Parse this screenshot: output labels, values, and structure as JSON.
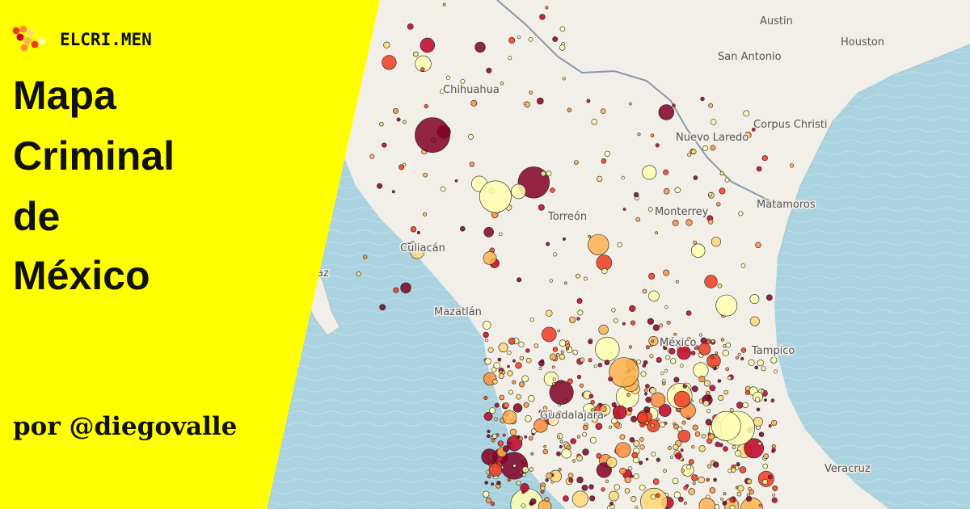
{
  "logo": {
    "text": "ELCRI.MEN"
  },
  "title": {
    "lines": [
      "Mapa",
      "Criminal",
      "de",
      "México"
    ]
  },
  "byline": "por @diegovalle",
  "map": {
    "labels": [
      "Austin",
      "Houston",
      "San Antonio",
      "Chihuahua",
      "Corpus Christi",
      "Nuevo Laredo",
      "Monterrey",
      "Matamoros",
      "Torreón",
      "Culiacán",
      "Mazatlán",
      "México",
      "Tampico",
      "az",
      "Guadalajara",
      "Veracruz"
    ]
  }
}
